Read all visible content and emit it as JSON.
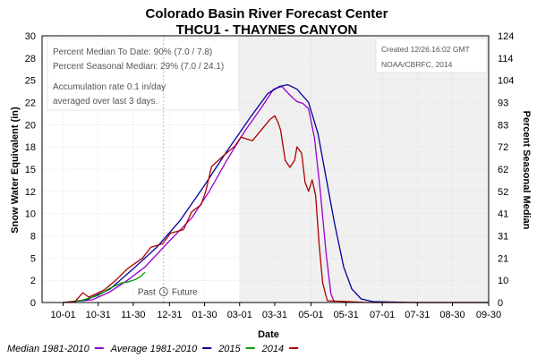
{
  "chart_data": {
    "type": "line",
    "title": "Colorado Basin River Forecast Center",
    "subtitle": "THCU1 - THAYNES CANYON",
    "xlabel": "Date",
    "ylabel": "Snow Water Equivalent (in)",
    "y2label": "Percent Seasonal Median",
    "ylim": [
      0,
      30
    ],
    "yticks": [
      "0",
      "2",
      "5",
      "8",
      "10",
      "12",
      "15",
      "18",
      "20",
      "22",
      "25",
      "28",
      "30"
    ],
    "y2ticks": [
      "0",
      "10",
      "21",
      "31",
      "41",
      "52",
      "62",
      "72",
      "83",
      "93",
      "104",
      "114",
      "124"
    ],
    "x_ticks": [
      "10-01",
      "10-31",
      "11-30",
      "12-31",
      "01-30",
      "03-01",
      "03-31",
      "05-01",
      "05-31",
      "07-01",
      "07-31",
      "08-30",
      "09-30"
    ],
    "x_tick_days": [
      0,
      30,
      60,
      91,
      121,
      151,
      181,
      212,
      242,
      273,
      303,
      333,
      364
    ],
    "x_range_days": [
      -18,
      364
    ],
    "today_day": 86,
    "shaded_range_days": [
      151,
      364
    ],
    "legend_position": "bottom",
    "series": [
      {
        "name": "Median 1981-2010",
        "color": "#9900cc",
        "points": [
          [
            0,
            0
          ],
          [
            25,
            0.3
          ],
          [
            40,
            1.2
          ],
          [
            55,
            2.5
          ],
          [
            70,
            4
          ],
          [
            90,
            6.8
          ],
          [
            110,
            9.5
          ],
          [
            125,
            12.5
          ],
          [
            140,
            16
          ],
          [
            155,
            19.2
          ],
          [
            170,
            22
          ],
          [
            180,
            24
          ],
          [
            187,
            24.3
          ],
          [
            195,
            23.2
          ],
          [
            200,
            22.6
          ],
          [
            205,
            22.4
          ],
          [
            210,
            21.8
          ],
          [
            215,
            18.5
          ],
          [
            220,
            12.5
          ],
          [
            225,
            5.5
          ],
          [
            229,
            1
          ],
          [
            232,
            0
          ]
        ]
      },
      {
        "name": "Average 1981-2010",
        "color": "#000099",
        "points": [
          [
            0,
            0
          ],
          [
            20,
            0.3
          ],
          [
            40,
            1.5
          ],
          [
            60,
            3.8
          ],
          [
            80,
            6.2
          ],
          [
            100,
            9.2
          ],
          [
            120,
            13
          ],
          [
            140,
            17
          ],
          [
            160,
            20.8
          ],
          [
            175,
            23.5
          ],
          [
            185,
            24.3
          ],
          [
            192,
            24.5
          ],
          [
            200,
            24
          ],
          [
            210,
            22.5
          ],
          [
            218,
            19
          ],
          [
            225,
            14
          ],
          [
            232,
            9
          ],
          [
            240,
            4
          ],
          [
            247,
            1.5
          ],
          [
            255,
            0.4
          ],
          [
            265,
            0.1
          ],
          [
            300,
            0
          ],
          [
            364,
            0
          ]
        ]
      },
      {
        "name": "2015",
        "color": "#009900",
        "points": [
          [
            0,
            0
          ],
          [
            15,
            0.2
          ],
          [
            30,
            0.8
          ],
          [
            40,
            1.6
          ],
          [
            50,
            2.2
          ],
          [
            55,
            2.3
          ],
          [
            62,
            2.6
          ],
          [
            67,
            3
          ],
          [
            70,
            3.4
          ]
        ]
      },
      {
        "name": "2014",
        "color": "#aa0000",
        "points": [
          [
            0,
            0
          ],
          [
            10,
            0.1
          ],
          [
            17,
            1.1
          ],
          [
            22,
            0.6
          ],
          [
            35,
            1.4
          ],
          [
            45,
            2.5
          ],
          [
            55,
            3.8
          ],
          [
            68,
            5
          ],
          [
            75,
            6.2
          ],
          [
            85,
            6.6
          ],
          [
            92,
            7.8
          ],
          [
            103,
            8.2
          ],
          [
            110,
            10.2
          ],
          [
            118,
            11
          ],
          [
            122,
            12.5
          ],
          [
            127,
            15.3
          ],
          [
            137,
            16.5
          ],
          [
            147,
            17.6
          ],
          [
            152,
            18.6
          ],
          [
            162,
            18.2
          ],
          [
            172,
            19.8
          ],
          [
            177,
            20.6
          ],
          [
            181,
            21
          ],
          [
            184,
            20.2
          ],
          [
            186,
            19.4
          ],
          [
            190,
            16
          ],
          [
            194,
            15.2
          ],
          [
            198,
            16
          ],
          [
            200,
            17.5
          ],
          [
            204,
            16.8
          ],
          [
            207,
            13.5
          ],
          [
            210,
            12.5
          ],
          [
            213,
            13.8
          ],
          [
            216,
            12
          ],
          [
            219,
            6.5
          ],
          [
            222,
            2.2
          ],
          [
            226,
            0.2
          ],
          [
            260,
            0
          ],
          [
            300,
            0
          ],
          [
            364,
            0
          ]
        ]
      }
    ],
    "annotations": [
      {
        "id": "left-box-line-1",
        "text": "Percent Median To Date: 90% (7.0 / 7.8)"
      },
      {
        "id": "left-box-line-2",
        "text": "Percent Seasonal Median: 29% (7.0 / 24.1)"
      },
      {
        "id": "left-box-line-3",
        "text": "Accumulation rate 0.1 in/day"
      },
      {
        "id": "left-box-line-4",
        "text": "averaged over last 3 days."
      },
      {
        "id": "right-box-line-1",
        "text": "Created 12/26.16:02 GMT"
      },
      {
        "id": "right-box-line-2",
        "text": "NOAA/CBRFC, 2014"
      },
      {
        "id": "past-label",
        "text": "Past"
      },
      {
        "id": "future-label",
        "text": "Future"
      }
    ]
  }
}
